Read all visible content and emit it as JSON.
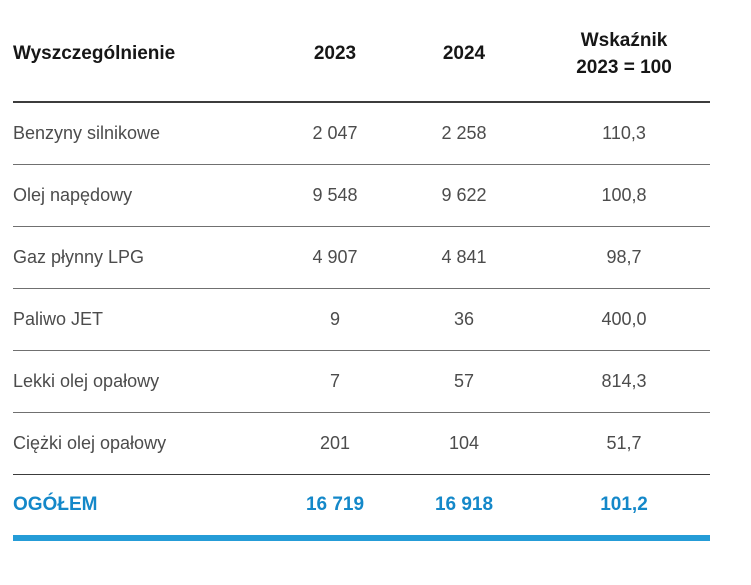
{
  "chart_data": {
    "type": "table",
    "headers": {
      "specification": "Wyszczególnienie",
      "year_2023": "2023",
      "year_2024": "2024",
      "index_line1": "Wskaźnik",
      "index_line2": "2023 = 100",
      "index_full": "Wskaźnik 2023 = 100"
    },
    "rows": [
      {
        "label": "Benzyny silnikowe",
        "y2023": "2 047",
        "y2024": "2 258",
        "index": "110,3"
      },
      {
        "label": "Olej napędowy",
        "y2023": "9 548",
        "y2024": "9 622",
        "index": "100,8"
      },
      {
        "label": "Gaz płynny LPG",
        "y2023": "4 907",
        "y2024": "4 841",
        "index": "98,7"
      },
      {
        "label": "Paliwo JET",
        "y2023": "9",
        "y2024": "36",
        "index": "400,0"
      },
      {
        "label": "Lekki olej opałowy",
        "y2023": "7",
        "y2024": "57",
        "index": "814,3"
      },
      {
        "label": "Ciężki olej opałowy",
        "y2023": "201",
        "y2024": "104",
        "index": "51,7"
      }
    ],
    "total": {
      "label": "OGÓŁEM",
      "y2023": "16 719",
      "y2024": "16 918",
      "index": "101,2"
    },
    "layout_hints": {
      "columns_align": [
        "left",
        "center",
        "center",
        "center"
      ],
      "grid": "horizontal-rules-only",
      "legend_position": "none"
    }
  },
  "colors": {
    "accent_blue": "#1488c9",
    "rule_blue": "#259cd7",
    "rule_dark": "#3c3c3c",
    "rule_gray": "#707070",
    "header_text": "#161616",
    "body_text": "#4c4c4c",
    "background": "#ffffff"
  }
}
